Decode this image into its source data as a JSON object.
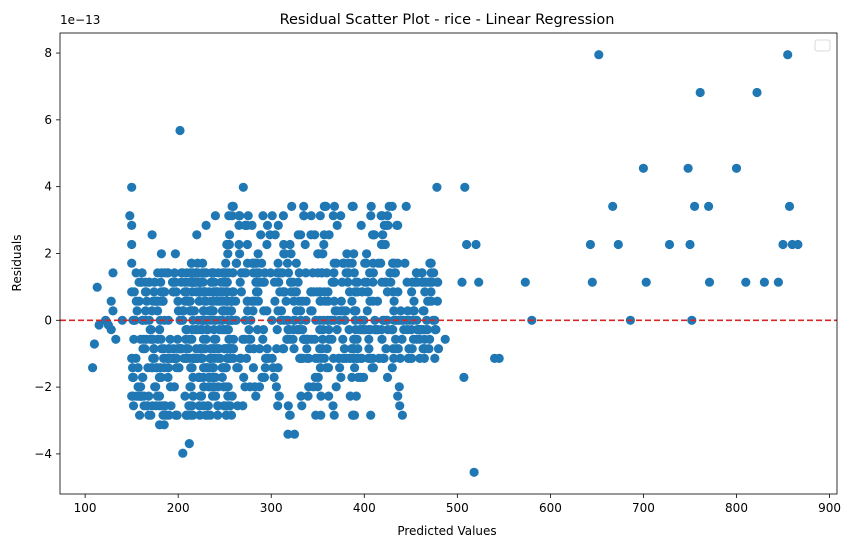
{
  "chart_data": {
    "type": "scatter",
    "title": "Residual Scatter Plot - rice  - Linear Regression",
    "xlabel": "Predicted Values",
    "ylabel": "Residuals",
    "y_offset_label": "1e−13",
    "xlim": [
      73,
      908
    ],
    "ylim": [
      -5.2,
      8.6
    ],
    "x_ticks": [
      100,
      200,
      300,
      400,
      500,
      600,
      700,
      800,
      900
    ],
    "y_ticks": [
      -4,
      -2,
      0,
      2,
      4,
      6,
      8
    ],
    "grid": false,
    "legend": "top-right, empty",
    "point_color": "#1f77b4",
    "reference_line": {
      "y": 0,
      "color": "#d62728",
      "style": "dashed"
    },
    "y_levels": [
      -3.98,
      -3.69,
      -3.41,
      -3.13,
      -2.84,
      -2.56,
      -2.27,
      -1.99,
      -1.71,
      -1.42,
      -1.14,
      -0.85,
      -0.57,
      -0.28,
      0,
      0.28,
      0.57,
      0.85,
      1.14,
      1.42,
      1.71,
      1.99,
      2.27,
      2.56,
      2.84,
      3.13,
      3.41,
      3.98
    ],
    "clusters": [
      {
        "x_range": [
          150,
          260
        ],
        "y_levels": [
          -2.84,
          -2.56,
          -2.27,
          -1.99,
          -1.71,
          -1.42,
          -1.14,
          -0.85,
          -0.57,
          -0.28,
          0,
          0.28,
          0.57,
          0.85,
          1.14,
          1.42
        ],
        "count": 340
      },
      {
        "x_range": [
          205,
          480
        ],
        "y_levels": [
          -1.14,
          -0.85,
          -0.57,
          -0.28,
          0,
          0.28,
          0.57,
          0.85,
          1.14,
          1.42,
          1.71
        ],
        "count": 520
      },
      {
        "x_range": [
          250,
          440
        ],
        "y_levels": [
          -2.84,
          -2.56,
          -2.27,
          -1.99,
          -1.71,
          -1.42,
          1.99,
          2.27,
          2.56,
          2.84,
          3.13,
          3.41
        ],
        "count": 140
      }
    ],
    "points": [
      [
        108,
        -1.42
      ],
      [
        110,
        -0.71
      ],
      [
        113,
        0.99
      ],
      [
        115,
        -0.14
      ],
      [
        122,
        0.0
      ],
      [
        125,
        -0.14
      ],
      [
        128,
        -0.28
      ],
      [
        128,
        0.57
      ],
      [
        130,
        1.42
      ],
      [
        130,
        0.28
      ],
      [
        133,
        -0.57
      ],
      [
        140,
        0.0
      ],
      [
        148,
        3.13
      ],
      [
        150,
        3.98
      ],
      [
        150,
        2.84
      ],
      [
        150,
        2.27
      ],
      [
        150,
        1.71
      ],
      [
        150,
        0.85
      ],
      [
        150,
        -1.14
      ],
      [
        150,
        -2.27
      ],
      [
        152,
        -2.56
      ],
      [
        155,
        0.57
      ],
      [
        158,
        1.14
      ],
      [
        160,
        -2.27
      ],
      [
        162,
        -1.71
      ],
      [
        165,
        0.28
      ],
      [
        170,
        -0.57
      ],
      [
        172,
        2.56
      ],
      [
        178,
        1.42
      ],
      [
        180,
        -3.13
      ],
      [
        182,
        1.99
      ],
      [
        185,
        -3.13
      ],
      [
        190,
        -2.84
      ],
      [
        195,
        1.14
      ],
      [
        197,
        1.99
      ],
      [
        202,
        5.68
      ],
      [
        205,
        -3.98
      ],
      [
        212,
        -3.69
      ],
      [
        220,
        2.56
      ],
      [
        230,
        2.84
      ],
      [
        240,
        3.13
      ],
      [
        258,
        3.41
      ],
      [
        258,
        3.13
      ],
      [
        270,
        3.98
      ],
      [
        296,
        2.84
      ],
      [
        335,
        3.13
      ],
      [
        357,
        3.41
      ],
      [
        368,
        3.41
      ],
      [
        387,
        3.41
      ],
      [
        430,
        3.41
      ],
      [
        445,
        3.41
      ],
      [
        478,
        3.98
      ],
      [
        508,
        3.98
      ],
      [
        505,
        1.14
      ],
      [
        510,
        2.27
      ],
      [
        520,
        2.27
      ],
      [
        523,
        1.14
      ],
      [
        487,
        -0.57
      ],
      [
        507,
        -1.71
      ],
      [
        540,
        -1.14
      ],
      [
        545,
        -1.14
      ],
      [
        518,
        -4.55
      ],
      [
        318,
        -3.41
      ],
      [
        325,
        -3.41
      ],
      [
        388,
        -2.84
      ],
      [
        425,
        -1.71
      ],
      [
        441,
        -2.84
      ],
      [
        573,
        1.14
      ],
      [
        580,
        0.0
      ],
      [
        643,
        2.27
      ],
      [
        645,
        1.14
      ],
      [
        652,
        7.95
      ],
      [
        667,
        3.41
      ],
      [
        673,
        2.27
      ],
      [
        686,
        0.0
      ],
      [
        700,
        4.55
      ],
      [
        703,
        1.14
      ],
      [
        728,
        2.27
      ],
      [
        748,
        4.55
      ],
      [
        750,
        2.27
      ],
      [
        752,
        0.0
      ],
      [
        755,
        3.41
      ],
      [
        761,
        6.82
      ],
      [
        770,
        3.41
      ],
      [
        771,
        1.14
      ],
      [
        800,
        4.55
      ],
      [
        810,
        1.14
      ],
      [
        822,
        6.82
      ],
      [
        830,
        1.14
      ],
      [
        845,
        1.14
      ],
      [
        850,
        2.27
      ],
      [
        855,
        7.95
      ],
      [
        857,
        3.41
      ],
      [
        860,
        2.27
      ],
      [
        866,
        2.27
      ]
    ]
  }
}
